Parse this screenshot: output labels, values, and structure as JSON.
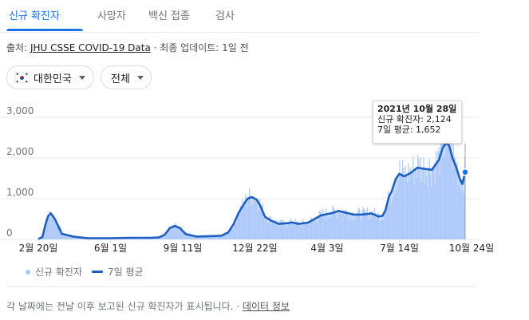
{
  "tabs": [
    {
      "label": "신규 확진자"
    },
    {
      "label": "사망자"
    },
    {
      "label": "백신 접종"
    },
    {
      "label": "검사"
    }
  ],
  "source": {
    "prefix": "출처: ",
    "link": "JHU CSSE COVID-19 Data",
    "sep": " · ",
    "updated": "최종 업데이트: 1일 전"
  },
  "filters": {
    "region": "대한민국",
    "period": "전체"
  },
  "tooltip": {
    "date": "2021년 10월 28일",
    "new_cases": "신규 확진자: 2,124",
    "avg7": "7일 평균: 1,652"
  },
  "legend": {
    "bars": "신규 확진자",
    "line": "7일 평균"
  },
  "footer": {
    "note": "각 날짜에는 전날 이후 보고된 신규 확진자가 표시됩니다.",
    "sep": " · ",
    "link": "데이터 정보"
  },
  "colors": {
    "accent": "#1a73e8",
    "bar": "#aecbfa",
    "line": "#1f5fc1",
    "grid": "#e8eaed"
  },
  "chart_data": {
    "type": "area",
    "x_tick_labels": [
      "2월 20일",
      "6월 1일",
      "9월 11일",
      "12월 22일",
      "4월 3일",
      "7월 14일",
      "10월 24일"
    ],
    "y_tick_labels": [
      "0",
      "1,000",
      "2,000",
      "3,000"
    ],
    "ylim": [
      0,
      3000
    ],
    "grid": true,
    "series": [
      {
        "name": "7일 평균",
        "x": [
          "2020-02-20",
          "2020-02-26",
          "2020-03-01",
          "2020-03-05",
          "2020-03-09",
          "2020-03-15",
          "2020-03-25",
          "2020-04-10",
          "2020-05-01",
          "2020-06-01",
          "2020-07-01",
          "2020-08-01",
          "2020-08-12",
          "2020-08-20",
          "2020-08-28",
          "2020-09-04",
          "2020-09-11",
          "2020-09-20",
          "2020-10-05",
          "2020-10-25",
          "2020-11-10",
          "2020-11-20",
          "2020-11-28",
          "2020-12-05",
          "2020-12-12",
          "2020-12-18",
          "2020-12-24",
          "2020-12-31",
          "2021-01-05",
          "2021-01-12",
          "2021-01-20",
          "2021-02-01",
          "2021-02-15",
          "2021-02-20",
          "2021-03-01",
          "2021-03-15",
          "2021-04-03",
          "2021-04-20",
          "2021-04-28",
          "2021-05-10",
          "2021-05-20",
          "2021-06-01",
          "2021-06-15",
          "2021-06-25",
          "2021-07-01",
          "2021-07-05",
          "2021-07-10",
          "2021-07-14",
          "2021-07-20",
          "2021-07-25",
          "2021-08-01",
          "2021-08-10",
          "2021-08-20",
          "2021-09-01",
          "2021-09-10",
          "2021-09-20",
          "2021-09-25",
          "2021-10-01",
          "2021-10-05",
          "2021-10-10",
          "2021-10-15",
          "2021-10-20",
          "2021-10-24",
          "2021-10-28"
        ],
        "values": [
          10,
          60,
          350,
          570,
          640,
          500,
          140,
          70,
          30,
          30,
          40,
          40,
          50,
          110,
          280,
          330,
          280,
          130,
          70,
          80,
          90,
          170,
          380,
          650,
          850,
          1000,
          1040,
          980,
          840,
          560,
          470,
          380,
          400,
          420,
          380,
          410,
          590,
          650,
          700,
          650,
          610,
          610,
          640,
          560,
          580,
          720,
          1050,
          1180,
          1490,
          1610,
          1550,
          1630,
          1760,
          1730,
          1710,
          1950,
          2220,
          2390,
          2300,
          1980,
          1780,
          1500,
          1360,
          1652
        ]
      },
      {
        "name": "신규 확진자",
        "x": [
          "2021-10-28"
        ],
        "values": [
          2124
        ]
      }
    ]
  }
}
